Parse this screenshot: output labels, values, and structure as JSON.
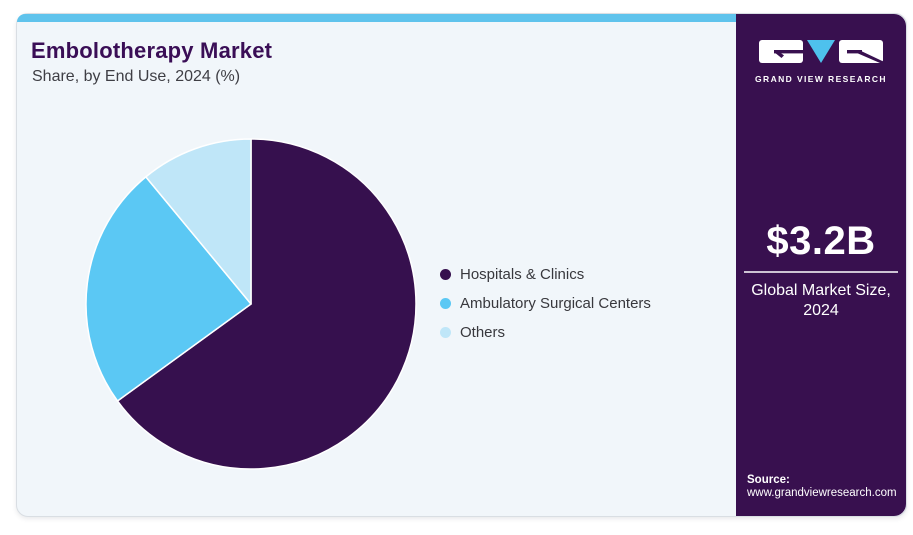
{
  "header": {
    "title": "Embolotherapy Market",
    "subtitle": "Share, by End Use, 2024 (%)"
  },
  "chart_data": {
    "type": "pie",
    "title": "Embolotherapy Market Share, by End Use, 2024 (%)",
    "categories": [
      "Hospitals & Clinics",
      "Ambulatory Surgical Centers",
      "Others"
    ],
    "values": [
      65,
      24,
      11
    ],
    "unit": "%",
    "colors": [
      "#36104E",
      "#5BC8F4",
      "#BFE6F8"
    ],
    "start_angle": "12 o'clock",
    "direction": "clockwise",
    "legend_position": "right",
    "data_labels_shown": false
  },
  "sidebar": {
    "brand": "GRAND VIEW RESEARCH",
    "market_size_value": "$3.2B",
    "market_size_label_line1": "Global Market Size,",
    "market_size_label_line2": "2024",
    "source_label": "Source:",
    "source_url": "www.grandviewresearch.com"
  },
  "colors": {
    "accent_bar": "#5FC3EC",
    "panel_bg": "#F1F6FA",
    "sidebar_bg": "#38104F",
    "title_text": "#3A0E56",
    "logo_triangle": "#4EC1ED"
  }
}
